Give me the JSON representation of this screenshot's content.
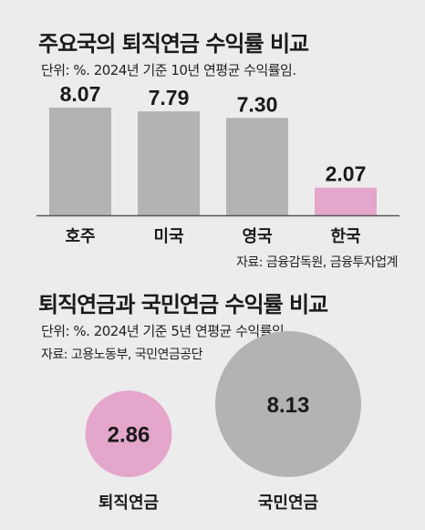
{
  "chart_data": [
    {
      "type": "bar",
      "title": "주요국의 퇴직연금 수익률 비교",
      "subtitle": "단위: %. 2024년 기준 10년 연평균 수익률임.",
      "source": "자료: 금융감독원, 금융투자업계",
      "categories": [
        "호주",
        "미국",
        "영국",
        "한국"
      ],
      "values": [
        8.07,
        7.79,
        7.3,
        2.07
      ],
      "value_labels": [
        "8.07",
        "7.79",
        "7.30",
        "2.07"
      ],
      "colors": [
        "#b3b3b3",
        "#b3b3b3",
        "#b3b3b3",
        "#e4a6cb"
      ],
      "ylim": [
        0,
        8.07
      ]
    },
    {
      "type": "bubble",
      "title": "퇴직연금과 국민연금 수익률 비교",
      "subtitle": "단위: %. 2024년 기준 5년 연평균 수익률임.",
      "source": "자료: 고용노동부, 국민연금공단",
      "categories": [
        "퇴직연금",
        "국민연금"
      ],
      "values": [
        2.86,
        8.13
      ],
      "value_labels": [
        "2.86",
        "8.13"
      ],
      "colors": [
        "#e4a6cb",
        "#b3b3b3"
      ]
    }
  ],
  "colors": {
    "background": "#ececec",
    "text": "#1a1a1a",
    "gray": "#b3b3b3",
    "pink": "#e4a6cb",
    "axis": "#555555"
  }
}
